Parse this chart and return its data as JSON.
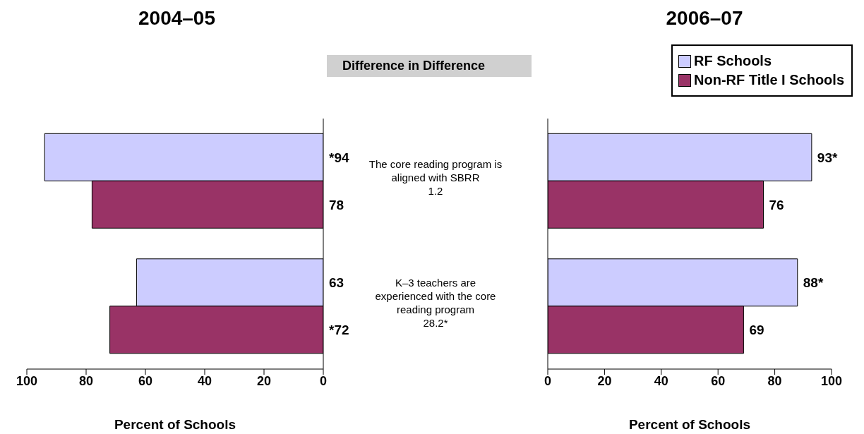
{
  "chart_data": [
    {
      "type": "bar",
      "orientation": "horizontal",
      "title": "2004–05",
      "xlabel": "Percent of Schools",
      "categories": [
        "The core reading program is aligned with SBRR",
        "K–3 teachers are experienced with the core reading program"
      ],
      "xlim": [
        100,
        0
      ],
      "xticks": [
        100,
        80,
        60,
        40,
        20,
        0
      ],
      "grid": false,
      "legend": false,
      "annotations": [
        "Difference in Difference",
        "1.2",
        "28.2*"
      ],
      "series": [
        {
          "color": "#ccccff",
          "values": [
            94,
            63
          ],
          "value_labels": [
            "*94",
            "63"
          ]
        },
        {
          "color": "#993366",
          "values": [
            78,
            72
          ],
          "value_labels": [
            "78",
            "*72"
          ]
        }
      ]
    },
    {
      "type": "bar",
      "orientation": "horizontal",
      "title": "2006–07",
      "xlabel": "Percent of Schools",
      "categories": [
        null,
        null
      ],
      "xlim": [
        0,
        100
      ],
      "xticks": [
        0,
        20,
        40,
        60,
        80,
        100
      ],
      "grid": false,
      "legend": "top right",
      "series": [
        {
          "name": "RF Schools",
          "color": "#ccccff",
          "values": [
            93,
            88
          ],
          "value_labels": [
            "93*",
            "88*"
          ]
        },
        {
          "name": "Non-RF Title I Schools",
          "color": "#993366",
          "values": [
            76,
            69
          ],
          "value_labels": [
            "76",
            "69"
          ]
        }
      ]
    }
  ]
}
